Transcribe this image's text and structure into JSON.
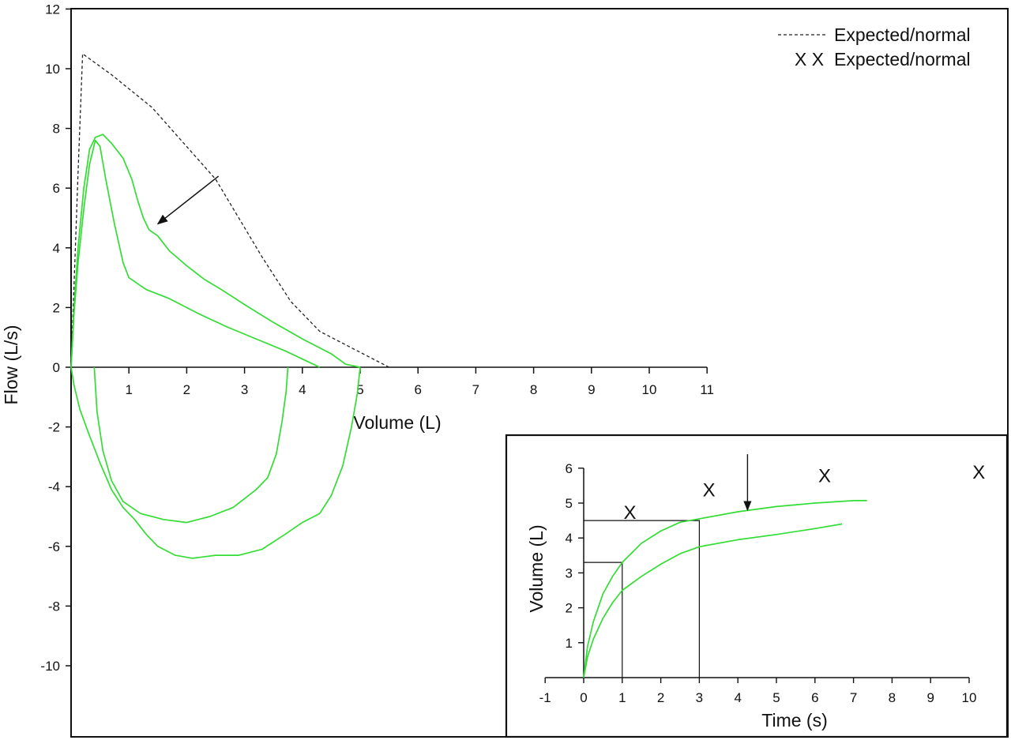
{
  "chart_data": [
    {
      "type": "line",
      "title": "",
      "xlabel": "Volume (L)",
      "ylabel": "Flow (L/s)",
      "xlim": [
        0,
        11
      ],
      "ylim": [
        -12,
        12
      ],
      "x_ticks": [
        1,
        2,
        3,
        4,
        5,
        6,
        7,
        8,
        9,
        10,
        11
      ],
      "y_ticks": [
        12,
        10,
        8,
        6,
        4,
        2,
        0,
        -2,
        -4,
        -6,
        -8,
        -10
      ],
      "grid": false,
      "legend": {
        "placement": "top-right",
        "entries": [
          {
            "symbol": "dashed-line",
            "marker_text": "",
            "label": "Expected/normal"
          },
          {
            "symbol": "text",
            "marker_text": "X X",
            "label": "Expected/normal"
          }
        ]
      },
      "colors": {
        "curves": "#33dd33",
        "expected": "#222222",
        "frame": "#111111"
      },
      "series": [
        {
          "style": "dashed",
          "points": [
            [
              0.0,
              0.0
            ],
            [
              0.12,
              6.5
            ],
            [
              0.2,
              10.5
            ],
            [
              0.7,
              9.8
            ],
            [
              1.4,
              8.7
            ],
            [
              2.5,
              6.3
            ],
            [
              3.3,
              3.7
            ],
            [
              3.8,
              2.2
            ],
            [
              4.3,
              1.2
            ],
            [
              5.0,
              0.5
            ],
            [
              5.5,
              0.0
            ]
          ]
        },
        {
          "style": "solid",
          "points": [
            [
              0.0,
              0.0
            ],
            [
              0.05,
              2.0
            ],
            [
              0.12,
              4.0
            ],
            [
              0.22,
              6.0
            ],
            [
              0.32,
              7.3
            ],
            [
              0.42,
              7.7
            ],
            [
              0.55,
              7.8
            ],
            [
              0.7,
              7.5
            ],
            [
              0.9,
              7.0
            ],
            [
              1.05,
              6.3
            ],
            [
              1.15,
              5.6
            ],
            [
              1.25,
              5.0
            ],
            [
              1.35,
              4.6
            ],
            [
              1.5,
              4.4
            ],
            [
              1.7,
              3.9
            ],
            [
              2.0,
              3.4
            ],
            [
              2.3,
              2.95
            ],
            [
              2.6,
              2.6
            ],
            [
              3.0,
              2.1
            ],
            [
              3.5,
              1.5
            ],
            [
              4.0,
              0.95
            ],
            [
              4.5,
              0.45
            ],
            [
              4.75,
              0.1
            ],
            [
              5.0,
              0.0
            ]
          ]
        },
        {
          "style": "solid",
          "points": [
            [
              0.0,
              0.0
            ],
            [
              0.05,
              1.8
            ],
            [
              0.12,
              3.5
            ],
            [
              0.22,
              5.3
            ],
            [
              0.32,
              6.8
            ],
            [
              0.42,
              7.6
            ],
            [
              0.5,
              7.4
            ],
            [
              0.6,
              6.3
            ],
            [
              0.75,
              4.8
            ],
            [
              0.9,
              3.5
            ],
            [
              1.0,
              3.0
            ],
            [
              1.3,
              2.6
            ],
            [
              1.7,
              2.3
            ],
            [
              2.2,
              1.8
            ],
            [
              2.7,
              1.35
            ],
            [
              3.2,
              0.95
            ],
            [
              3.7,
              0.55
            ],
            [
              4.3,
              0.0
            ]
          ]
        },
        {
          "style": "solid",
          "points": [
            [
              0.0,
              0.0
            ],
            [
              0.05,
              -0.6
            ],
            [
              0.15,
              -1.4
            ],
            [
              0.3,
              -2.2
            ],
            [
              0.5,
              -3.2
            ],
            [
              0.7,
              -4.1
            ],
            [
              0.9,
              -4.7
            ],
            [
              1.1,
              -5.1
            ],
            [
              1.3,
              -5.6
            ],
            [
              1.5,
              -6.0
            ],
            [
              1.8,
              -6.3
            ],
            [
              2.1,
              -6.4
            ],
            [
              2.5,
              -6.3
            ],
            [
              2.9,
              -6.3
            ],
            [
              3.3,
              -6.1
            ],
            [
              3.7,
              -5.6
            ],
            [
              4.0,
              -5.2
            ],
            [
              4.3,
              -4.9
            ],
            [
              4.5,
              -4.3
            ],
            [
              4.7,
              -3.3
            ],
            [
              4.85,
              -2.0
            ],
            [
              4.95,
              -0.9
            ],
            [
              5.0,
              0.0
            ]
          ]
        },
        {
          "style": "solid",
          "points": [
            [
              0.4,
              0.0
            ],
            [
              0.45,
              -1.5
            ],
            [
              0.55,
              -2.8
            ],
            [
              0.7,
              -3.8
            ],
            [
              0.9,
              -4.5
            ],
            [
              1.2,
              -4.9
            ],
            [
              1.6,
              -5.1
            ],
            [
              2.0,
              -5.2
            ],
            [
              2.4,
              -5.0
            ],
            [
              2.8,
              -4.7
            ],
            [
              3.2,
              -4.1
            ],
            [
              3.4,
              -3.7
            ],
            [
              3.55,
              -2.9
            ],
            [
              3.65,
              -1.8
            ],
            [
              3.72,
              -0.8
            ],
            [
              3.75,
              0.0
            ]
          ]
        }
      ],
      "annotations": [
        {
          "type": "arrow",
          "from": [
            2.55,
            6.4
          ],
          "to": [
            1.5,
            4.8
          ]
        }
      ]
    },
    {
      "type": "line",
      "title": "",
      "xlabel": "Time (s)",
      "ylabel": "Volume (L)",
      "xlim": [
        -1,
        10
      ],
      "ylim": [
        0,
        6
      ],
      "x_ticks": [
        -1,
        0,
        1,
        2,
        3,
        4,
        5,
        6,
        7,
        8,
        9,
        10
      ],
      "y_ticks": [
        6,
        5,
        4,
        3,
        2,
        1
      ],
      "grid": false,
      "colors": {
        "curves": "#33dd33",
        "guides": "#111111"
      },
      "series": [
        {
          "style": "solid",
          "points": [
            [
              0,
              0
            ],
            [
              0.1,
              0.9
            ],
            [
              0.25,
              1.6
            ],
            [
              0.5,
              2.4
            ],
            [
              0.75,
              2.9
            ],
            [
              1,
              3.3
            ],
            [
              1.5,
              3.85
            ],
            [
              2,
              4.2
            ],
            [
              2.5,
              4.45
            ],
            [
              3,
              4.55
            ],
            [
              4,
              4.75
            ],
            [
              5,
              4.9
            ],
            [
              6,
              5.0
            ],
            [
              7,
              5.07
            ],
            [
              7.35,
              5.07
            ]
          ]
        },
        {
          "style": "solid",
          "points": [
            [
              0,
              0
            ],
            [
              0.1,
              0.6
            ],
            [
              0.25,
              1.1
            ],
            [
              0.5,
              1.7
            ],
            [
              0.75,
              2.15
            ],
            [
              1,
              2.5
            ],
            [
              1.5,
              2.9
            ],
            [
              2,
              3.25
            ],
            [
              2.5,
              3.55
            ],
            [
              3,
              3.75
            ],
            [
              4,
              3.95
            ],
            [
              5,
              4.1
            ],
            [
              6,
              4.27
            ],
            [
              6.7,
              4.4
            ]
          ]
        }
      ],
      "guide_lines": [
        {
          "x": 1,
          "y": 3.3
        },
        {
          "x": 3,
          "y": 4.5
        }
      ],
      "annotations": [
        {
          "type": "arrow",
          "from": [
            4.25,
            6.4
          ],
          "to": [
            4.25,
            4.8
          ]
        },
        {
          "type": "text",
          "text": "X",
          "at": [
            1.2,
            4.75
          ]
        },
        {
          "type": "text",
          "text": "X",
          "at": [
            3.25,
            5.4
          ]
        },
        {
          "type": "text",
          "text": "X",
          "at": [
            6.25,
            5.8
          ]
        },
        {
          "type": "text",
          "text": "X",
          "at": [
            10.25,
            5.9
          ]
        }
      ]
    }
  ]
}
